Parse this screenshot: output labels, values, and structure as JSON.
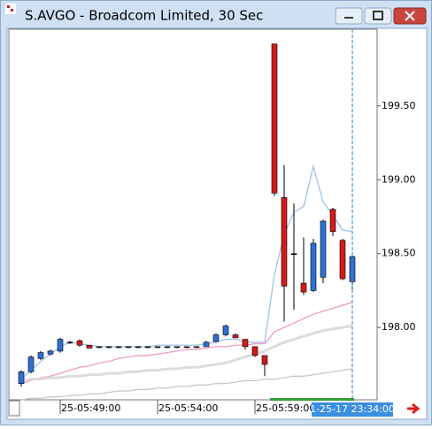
{
  "window": {
    "title": "S.AVGO - Broadcom Limited, 30 Sec"
  },
  "chart_data": {
    "type": "candlestick",
    "categories": [
      null,
      null,
      null,
      null,
      "25-05:49:00",
      null,
      null,
      null,
      null,
      null,
      null,
      null,
      null,
      null,
      "25-05:54:00",
      null,
      null,
      null,
      null,
      null,
      null,
      null,
      null,
      null,
      "25-05:59:00",
      null,
      null,
      null,
      null,
      null,
      null,
      null,
      null,
      null,
      null
    ],
    "open": [
      197.62,
      197.7,
      197.79,
      197.82,
      197.84,
      197.9,
      197.91,
      197.88,
      197.87,
      197.87,
      197.87,
      197.87,
      197.87,
      197.87,
      197.87,
      197.87,
      197.87,
      197.87,
      197.87,
      197.87,
      197.905,
      197.95,
      197.95,
      197.92,
      197.87,
      197.81,
      199.92,
      198.88,
      198.5,
      198.3,
      198.25,
      198.34,
      198.8,
      198.59,
      198.31
    ],
    "high": [
      197.71,
      197.81,
      197.84,
      197.85,
      197.93,
      197.91,
      197.92,
      197.88,
      197.87,
      197.87,
      197.87,
      197.87,
      197.87,
      197.87,
      197.87,
      197.87,
      197.87,
      197.87,
      197.87,
      197.91,
      197.96,
      198.02,
      197.96,
      197.92,
      197.87,
      197.81,
      199.92,
      199.1,
      198.84,
      198.61,
      198.6,
      198.73,
      198.81,
      198.6,
      198.5
    ],
    "low": [
      197.6,
      197.69,
      197.78,
      197.81,
      197.83,
      197.89,
      197.87,
      197.86,
      197.86,
      197.86,
      197.86,
      197.86,
      197.86,
      197.86,
      197.86,
      197.86,
      197.86,
      197.86,
      197.86,
      197.87,
      197.9,
      197.94,
      197.93,
      197.85,
      197.8,
      197.67,
      198.89,
      198.04,
      198.12,
      198.22,
      198.24,
      198.3,
      198.62,
      198.32,
      198.26
    ],
    "close": [
      197.7,
      197.8,
      197.83,
      197.84,
      197.92,
      197.9,
      197.88,
      197.86,
      197.87,
      197.87,
      197.87,
      197.87,
      197.87,
      197.87,
      197.87,
      197.87,
      197.87,
      197.87,
      197.87,
      197.9,
      197.95,
      198.01,
      197.93,
      197.87,
      197.81,
      197.75,
      198.91,
      198.28,
      198.5,
      198.24,
      198.57,
      198.72,
      198.65,
      198.33,
      198.48
    ],
    "up_color": "#2f6fd4",
    "down_color": "#d41a1a",
    "doji_color": "#000000",
    "overlays": [
      {
        "color": "#9cc4ea",
        "values": [
          197.65,
          197.71,
          197.77,
          197.82,
          197.87,
          197.9,
          197.89,
          197.88,
          197.87,
          197.87,
          197.87,
          197.87,
          197.87,
          197.87,
          197.88,
          197.88,
          197.88,
          197.88,
          197.88,
          197.89,
          197.9,
          197.92,
          197.92,
          197.9,
          197.9,
          197.9,
          198.36,
          198.63,
          198.78,
          198.82,
          199.09,
          198.85,
          198.76,
          198.66,
          198.65
        ]
      },
      {
        "color": "#f09ac0",
        "values": [
          197.62,
          197.64,
          197.66,
          197.67,
          197.69,
          197.71,
          197.73,
          197.74,
          197.76,
          197.77,
          197.79,
          197.8,
          197.81,
          197.81,
          197.82,
          197.83,
          197.84,
          197.85,
          197.85,
          197.86,
          197.87,
          197.87,
          197.88,
          197.88,
          197.89,
          197.89,
          197.97,
          198.0,
          198.03,
          198.06,
          198.09,
          198.11,
          198.13,
          198.15,
          198.17
        ]
      },
      {
        "color": "#dcdcdc",
        "values": [
          197.64,
          197.65,
          197.65,
          197.66,
          197.66,
          197.67,
          197.67,
          197.68,
          197.68,
          197.69,
          197.69,
          197.7,
          197.7,
          197.71,
          197.71,
          197.72,
          197.72,
          197.73,
          197.73,
          197.74,
          197.75,
          197.76,
          197.78,
          197.8,
          197.82,
          197.84,
          197.87,
          197.9,
          197.92,
          197.94,
          197.96,
          197.98,
          197.99,
          198.0,
          198.01
        ]
      },
      {
        "color": "#c8c8c8",
        "values": [
          197.51,
          197.52,
          197.52,
          197.53,
          197.53,
          197.54,
          197.54,
          197.55,
          197.55,
          197.56,
          197.57,
          197.57,
          197.58,
          197.58,
          197.59,
          197.59,
          197.6,
          197.6,
          197.61,
          197.61,
          197.62,
          197.62,
          197.63,
          197.64,
          197.64,
          197.65,
          197.65,
          197.66,
          197.67,
          197.67,
          197.68,
          197.69,
          197.7,
          197.71,
          197.72
        ]
      }
    ],
    "ylim": [
      197.51,
      200.02
    ],
    "yticks": [
      {
        "value": 198,
        "label": "198.00"
      },
      {
        "value": 198.5,
        "label": "198.50"
      },
      {
        "value": 199,
        "label": "199.00"
      },
      {
        "value": 199.5,
        "label": "199.50"
      }
    ],
    "cursor_label": "1-25-17 23:34:00"
  }
}
